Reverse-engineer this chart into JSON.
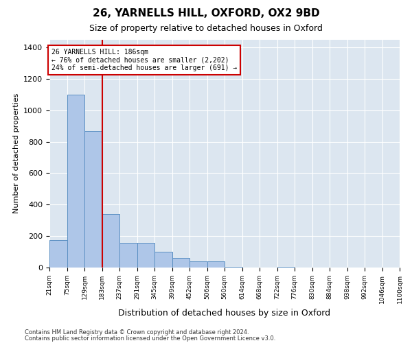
{
  "title": "26, YARNELLS HILL, OXFORD, OX2 9BD",
  "subtitle": "Size of property relative to detached houses in Oxford",
  "xlabel": "Distribution of detached houses by size in Oxford",
  "ylabel": "Number of detached properties",
  "bin_labels": [
    "21sqm",
    "75sqm",
    "129sqm",
    "183sqm",
    "237sqm",
    "291sqm",
    "345sqm",
    "399sqm",
    "452sqm",
    "506sqm",
    "560sqm",
    "614sqm",
    "668sqm",
    "722sqm",
    "776sqm",
    "830sqm",
    "884sqm",
    "938sqm",
    "992sqm",
    "1046sqm",
    "1100sqm"
  ],
  "bar_values": [
    175,
    1100,
    870,
    340,
    155,
    155,
    100,
    60,
    40,
    40,
    5,
    0,
    0,
    5,
    0,
    0,
    0,
    0,
    0,
    0
  ],
  "bar_color": "#aec6e8",
  "bar_edge_color": "#5a8fc2",
  "property_line_x": 3,
  "annotation_line1": "26 YARNELLS HILL: 186sqm",
  "annotation_line2": "← 76% of detached houses are smaller (2,202)",
  "annotation_line3": "24% of semi-detached houses are larger (691) →",
  "annotation_box_color": "#cc0000",
  "vline_color": "#cc0000",
  "background_color": "#dce6f0",
  "footer_line1": "Contains HM Land Registry data © Crown copyright and database right 2024.",
  "footer_line2": "Contains public sector information licensed under the Open Government Licence v3.0.",
  "ylim": [
    0,
    1450
  ],
  "yticks": [
    0,
    200,
    400,
    600,
    800,
    1000,
    1200,
    1400
  ]
}
